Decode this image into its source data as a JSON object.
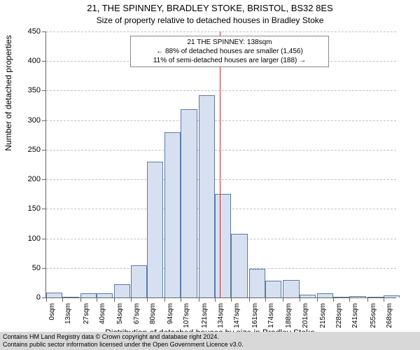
{
  "title": "21, THE SPINNEY, BRADLEY STOKE, BRISTOL, BS32 8ES",
  "subtitle": "Size of property relative to detached houses in Bradley Stoke",
  "ylabel": "Number of detached properties",
  "xlabel": "Distribution of detached houses by size in Bradley Stoke",
  "footer": {
    "line1": "Contains HM Land Registry data © Crown copyright and database right 2024.",
    "line2": "Contains public sector information licensed under the Open Government Licence v3.0."
  },
  "annotation": {
    "line1": "21 THE SPINNEY: 138sqm",
    "line2": "← 88% of detached houses are smaller (1,456)",
    "line3": "11% of semi-detached houses are larger (188) →"
  },
  "chart": {
    "type": "histogram",
    "background_color": "#ffffff",
    "grid_color": "#c0c0c0",
    "axis_color": "#666666",
    "bar_fill": "#d6e0f0",
    "bar_stroke": "#5b7ba8",
    "refline_color": "#d02828",
    "refline_x": 138,
    "ylim": [
      0,
      450
    ],
    "ytick_step": 50,
    "xlim": [
      0,
      278
    ],
    "xticks": [
      0,
      13,
      27,
      40,
      54,
      67,
      80,
      94,
      107,
      121,
      134,
      147,
      161,
      174,
      188,
      201,
      215,
      228,
      241,
      255,
      268
    ],
    "bin_width": 13,
    "bins": [
      {
        "x": 0,
        "count": 8
      },
      {
        "x": 13,
        "count": 0
      },
      {
        "x": 27,
        "count": 7
      },
      {
        "x": 40,
        "count": 7
      },
      {
        "x": 54,
        "count": 22
      },
      {
        "x": 67,
        "count": 55
      },
      {
        "x": 80,
        "count": 230
      },
      {
        "x": 94,
        "count": 280
      },
      {
        "x": 107,
        "count": 318
      },
      {
        "x": 121,
        "count": 342
      },
      {
        "x": 134,
        "count": 175
      },
      {
        "x": 147,
        "count": 108
      },
      {
        "x": 161,
        "count": 48
      },
      {
        "x": 174,
        "count": 28
      },
      {
        "x": 188,
        "count": 30
      },
      {
        "x": 201,
        "count": 5
      },
      {
        "x": 215,
        "count": 7
      },
      {
        "x": 228,
        "count": 0
      },
      {
        "x": 241,
        "count": 2
      },
      {
        "x": 255,
        "count": 0
      },
      {
        "x": 268,
        "count": 3
      }
    ],
    "title_fontsize": 13,
    "subtitle_fontsize": 12,
    "label_fontsize": 12,
    "tick_fontsize": 11
  }
}
